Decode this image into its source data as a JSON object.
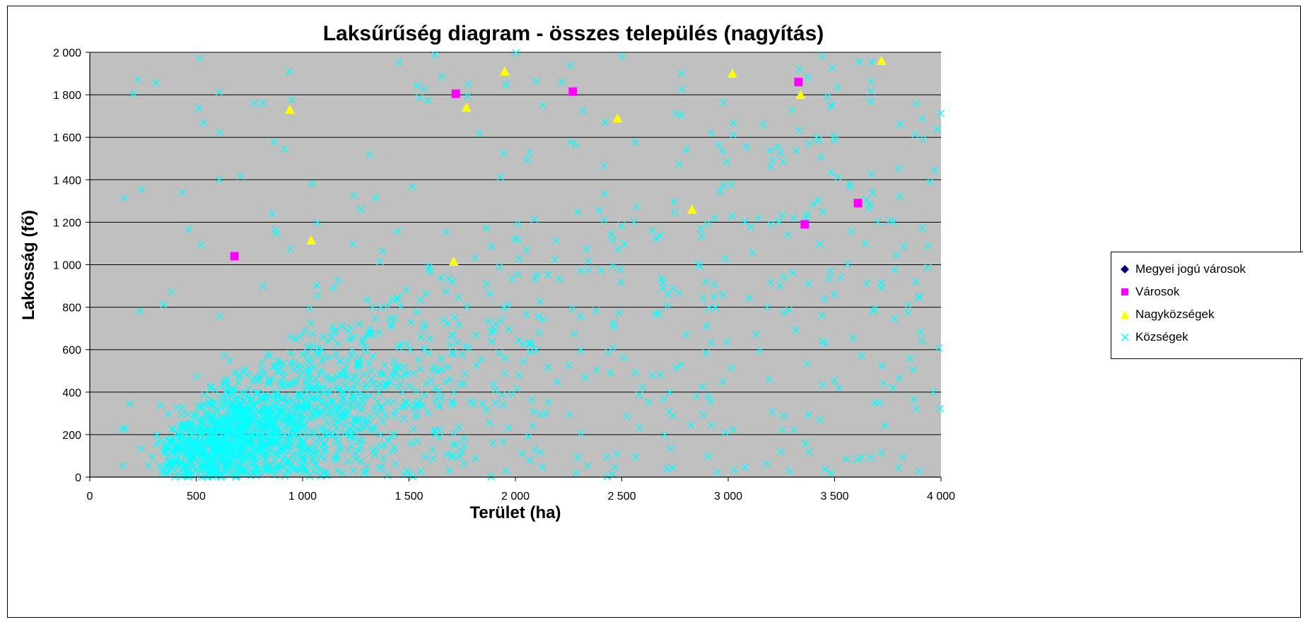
{
  "chart_data": {
    "type": "scatter",
    "title": "Laksűrűség diagram - összes település (nagyítás)",
    "xlabel": "Terület (ha)",
    "ylabel": "Lakosság (fő)",
    "xlim": [
      0,
      4000
    ],
    "ylim": [
      0,
      2000
    ],
    "x_ticks": [
      "0",
      "500",
      "1 000",
      "1 500",
      "2 000",
      "2 500",
      "3 000",
      "3 500",
      "4 000"
    ],
    "y_ticks": [
      "0",
      "200",
      "400",
      "600",
      "800",
      "1 000",
      "1 200",
      "1 400",
      "1 600",
      "1 800",
      "2 000"
    ],
    "grid": "horizontal",
    "plot_background": "#c0c0c0",
    "legend_position": "right",
    "series": [
      {
        "name": "Megyei jogú városok",
        "marker": "diamond",
        "color": "#000080",
        "points": []
      },
      {
        "name": "Városok",
        "marker": "square",
        "color": "#ff00ff",
        "points": [
          [
            680,
            1040
          ],
          [
            1720,
            1805
          ],
          [
            2270,
            1815
          ],
          [
            3330,
            1860
          ],
          [
            3360,
            1190
          ],
          [
            3610,
            1290
          ]
        ]
      },
      {
        "name": "Nagyközségek",
        "marker": "triangle",
        "color": "#ffff00",
        "points": [
          [
            940,
            1730
          ],
          [
            1040,
            1115
          ],
          [
            1710,
            1015
          ],
          [
            1770,
            1740
          ],
          [
            1950,
            1910
          ],
          [
            2480,
            1690
          ],
          [
            2830,
            1260
          ],
          [
            3020,
            1900
          ],
          [
            3340,
            1800
          ],
          [
            3720,
            1960
          ]
        ]
      },
      {
        "name": "Községek",
        "marker": "x",
        "color": "#00ffff",
        "points": "dense cloud of several thousand villages; densest at 300–1500 ha with 50–600 fő, thinning toward 4 000 ha / 2 000 fő"
      }
    ]
  },
  "legend": {
    "items": [
      {
        "label": "Megyei jogú városok",
        "icon": "diamond-icon",
        "color": "#000080"
      },
      {
        "label": "Városok",
        "icon": "square-icon",
        "color": "#ff00ff"
      },
      {
        "label": "Nagyközségek",
        "icon": "triangle-icon",
        "color": "#ffff00"
      },
      {
        "label": "Községek",
        "icon": "x-icon",
        "color": "#00ffff"
      }
    ]
  }
}
